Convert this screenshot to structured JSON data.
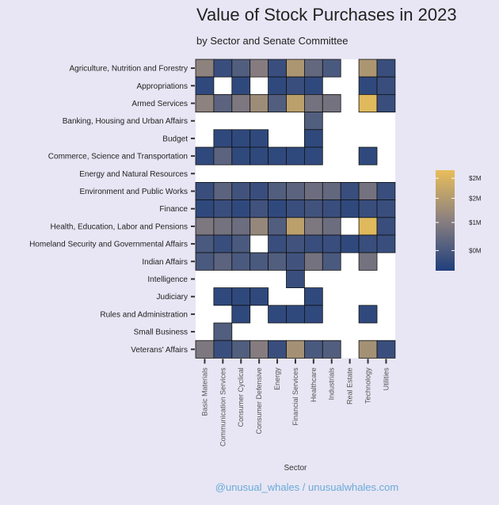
{
  "title": "Value of Stock Purchases in 2023",
  "subtitle": "by Sector and Senate Committee",
  "footer": "@unusual_whales / unusualwhales.com",
  "chart_data": {
    "type": "heatmap",
    "xlabel": "Sector",
    "ylabel": "",
    "x_categories": [
      "Basic Materials",
      "Communication Services",
      "Consumer Cyclical",
      "Consumer Defensive",
      "Energy",
      "Financial Services",
      "Healthcare",
      "Industrials",
      "Real Estate",
      "Technology",
      "Utilities"
    ],
    "y_categories": [
      "Agriculture, Nutrition and Forestry",
      "Appropriations",
      "Armed Services",
      "Banking, Housing and Urban Affairs",
      "Budget",
      "Commerce, Science and Transportation",
      "Energy and Natural Resources",
      "Environment and Public Works",
      "Finance",
      "Health, Education, Labor and Pensions",
      "Homeland Security and Governmental Affairs",
      "Indian Affairs",
      "Intelligence",
      "Judiciary",
      "Rules and Administration",
      "Small Business",
      "Veterans' Affairs"
    ],
    "values_millions": [
      [
        1.3,
        0.3,
        0.6,
        1.2,
        0.3,
        1.7,
        0.8,
        0.5,
        null,
        1.7,
        0.3
      ],
      [
        0.2,
        null,
        0.2,
        null,
        0.2,
        0.3,
        0.2,
        null,
        null,
        0.2,
        0.3
      ],
      [
        1.3,
        0.7,
        1.1,
        1.5,
        0.6,
        1.9,
        1.0,
        1.0,
        null,
        2.4,
        0.3
      ],
      [
        null,
        null,
        null,
        null,
        null,
        null,
        0.6,
        null,
        null,
        null,
        null
      ],
      [
        null,
        0.2,
        0.2,
        0.2,
        null,
        null,
        0.2,
        null,
        null,
        null,
        null
      ],
      [
        0.2,
        0.7,
        0.2,
        0.2,
        0.2,
        0.2,
        0.2,
        null,
        null,
        0.2,
        null
      ],
      [
        null,
        null,
        null,
        null,
        null,
        null,
        null,
        null,
        null,
        null,
        null
      ],
      [
        0.3,
        0.7,
        0.4,
        0.3,
        0.6,
        0.7,
        0.9,
        0.8,
        0.3,
        1.0,
        0.3
      ],
      [
        0.2,
        0.3,
        0.2,
        0.4,
        0.2,
        0.3,
        0.4,
        0.3,
        0.2,
        0.3,
        0.3
      ],
      [
        1.1,
        1.0,
        0.9,
        1.4,
        0.6,
        1.9,
        1.1,
        0.9,
        null,
        2.4,
        0.3
      ],
      [
        0.5,
        0.3,
        0.5,
        null,
        0.3,
        0.4,
        0.3,
        0.3,
        0.2,
        0.3,
        0.3
      ],
      [
        0.5,
        0.7,
        0.5,
        0.5,
        0.6,
        0.4,
        1.0,
        0.5,
        null,
        1.0,
        null
      ],
      [
        null,
        null,
        null,
        null,
        null,
        0.3,
        null,
        null,
        null,
        null,
        null
      ],
      [
        null,
        0.2,
        0.2,
        0.2,
        null,
        null,
        0.2,
        null,
        null,
        null,
        null
      ],
      [
        null,
        null,
        0.2,
        null,
        0.2,
        0.2,
        0.2,
        null,
        null,
        0.2,
        null
      ],
      [
        null,
        0.6,
        null,
        null,
        null,
        null,
        null,
        null,
        null,
        null,
        null
      ],
      [
        1.1,
        0.3,
        0.6,
        1.2,
        0.3,
        1.6,
        0.5,
        0.6,
        null,
        1.6,
        0.3
      ]
    ],
    "legend": {
      "tick_labels": [
        "$2M",
        "$2M",
        "$1M",
        "$0M"
      ],
      "tick_values": [
        2.3,
        1.8,
        1.2,
        0.5
      ],
      "range": [
        0,
        2.5
      ],
      "color_low": "#1f3f7c",
      "color_mid": "#8a7f80",
      "color_high": "#e8be5a"
    },
    "background_color": "#e8e6f4",
    "empty_cell_color": "#ffffff"
  }
}
